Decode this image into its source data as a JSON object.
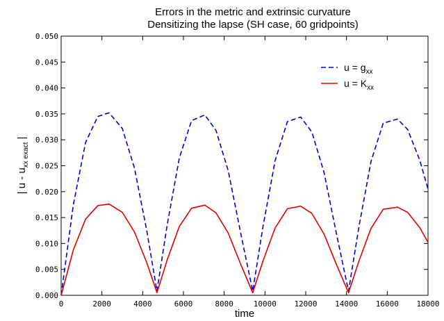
{
  "chart_data": {
    "type": "line",
    "title": "Errors in the metric and extrinsic curvature",
    "subtitle": "Densitizing the lapse (SH case, 60 gridpoints)",
    "xlabel": "time",
    "ylabel_main": "| u - u",
    "ylabel_sub": "xx exact",
    "ylabel_end": " |",
    "xlim": [
      0,
      18000
    ],
    "ylim": [
      0,
      0.05
    ],
    "xticks": [
      0,
      2000,
      4000,
      6000,
      8000,
      10000,
      12000,
      14000,
      16000,
      18000
    ],
    "xtick_labels": [
      "0",
      "2000",
      "4000",
      "6000",
      "8000",
      "10000",
      "12000",
      "14000",
      "16000",
      "18000"
    ],
    "yticks": [
      0,
      0.005,
      0.01,
      0.015,
      0.02,
      0.025,
      0.03,
      0.035,
      0.04,
      0.045,
      0.05
    ],
    "ytick_labels": [
      "0.000",
      "0.005",
      "0.010",
      "0.015",
      "0.020",
      "0.025",
      "0.030",
      "0.035",
      "0.040",
      "0.045",
      "0.050"
    ],
    "grid": false,
    "legend_position": "top-right",
    "series": [
      {
        "name": "u = g",
        "name_sub": "xx",
        "color": "#0000cc",
        "style": "dashed",
        "x": [
          0,
          600,
          1200,
          1800,
          2350,
          3000,
          3600,
          4200,
          4700,
          5200,
          5800,
          6400,
          7050,
          7600,
          8200,
          8800,
          9400,
          9900,
          10500,
          11100,
          11750,
          12300,
          12900,
          13500,
          14100,
          14600,
          15200,
          15800,
          16500,
          17000,
          17600,
          18000
        ],
        "y": [
          0.0,
          0.0175,
          0.0295,
          0.0345,
          0.0352,
          0.0322,
          0.0245,
          0.0125,
          0.0008,
          0.0135,
          0.0265,
          0.0337,
          0.0348,
          0.0318,
          0.024,
          0.0122,
          0.0008,
          0.0132,
          0.026,
          0.0335,
          0.0344,
          0.0315,
          0.0237,
          0.012,
          0.0008,
          0.013,
          0.0258,
          0.0332,
          0.034,
          0.032,
          0.026,
          0.0205
        ]
      },
      {
        "name": "u = K",
        "name_sub": "xx",
        "color": "#dd0000",
        "style": "solid",
        "x": [
          0,
          600,
          1200,
          1800,
          2350,
          3000,
          3600,
          4200,
          4700,
          5200,
          5800,
          6400,
          7050,
          7600,
          8200,
          8800,
          9400,
          9900,
          10500,
          11100,
          11750,
          12300,
          12900,
          13500,
          14100,
          14600,
          15200,
          15800,
          16500,
          17000,
          17600,
          18000
        ],
        "y": [
          0.0,
          0.0088,
          0.0147,
          0.0173,
          0.0176,
          0.016,
          0.0122,
          0.0063,
          0.0005,
          0.0068,
          0.0133,
          0.0168,
          0.0174,
          0.0159,
          0.012,
          0.0061,
          0.0005,
          0.0066,
          0.013,
          0.0167,
          0.0172,
          0.0158,
          0.0118,
          0.006,
          0.0005,
          0.0065,
          0.0129,
          0.0166,
          0.017,
          0.016,
          0.013,
          0.0102
        ]
      }
    ]
  }
}
